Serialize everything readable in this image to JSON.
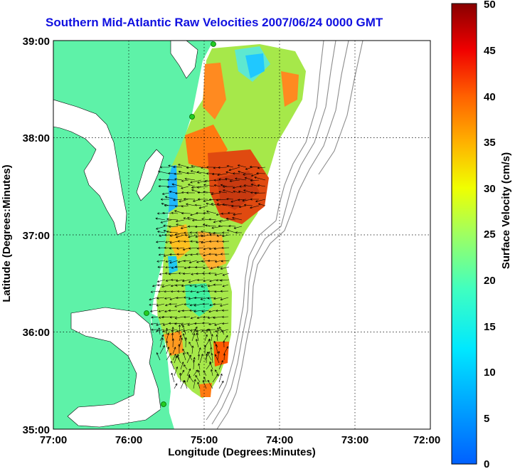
{
  "title": "Southern Mid-Atlantic Raw Velocities 2007/06/24 0000 GMT",
  "xlabel": "Longitude (Degrees:Minutes)",
  "ylabel": "Latitude (Degrees:Minutes)",
  "colorbar_label": "Surface Velocity (cm/s)",
  "x_ticks": [
    "77:00",
    "76:00",
    "75:00",
    "74:00",
    "73:00",
    "72:00"
  ],
  "y_ticks": [
    "39:00",
    "38:00",
    "37:00",
    "36:00",
    "35:00"
  ],
  "colorbar_ticks": [
    "50",
    "45",
    "40",
    "35",
    "30",
    "25",
    "20",
    "15",
    "10",
    "5",
    "0"
  ],
  "colors": {
    "land": "#5ef2a8",
    "title": "#1010e0",
    "coast_line": "#000000",
    "bathymetry": "#8c8c8c",
    "station": "#22cc22"
  },
  "chart_data": {
    "type": "map",
    "xlim": [
      -77,
      -72
    ],
    "ylim": [
      35,
      39
    ],
    "colorbar_range": [
      0,
      50
    ],
    "grid": true
  }
}
